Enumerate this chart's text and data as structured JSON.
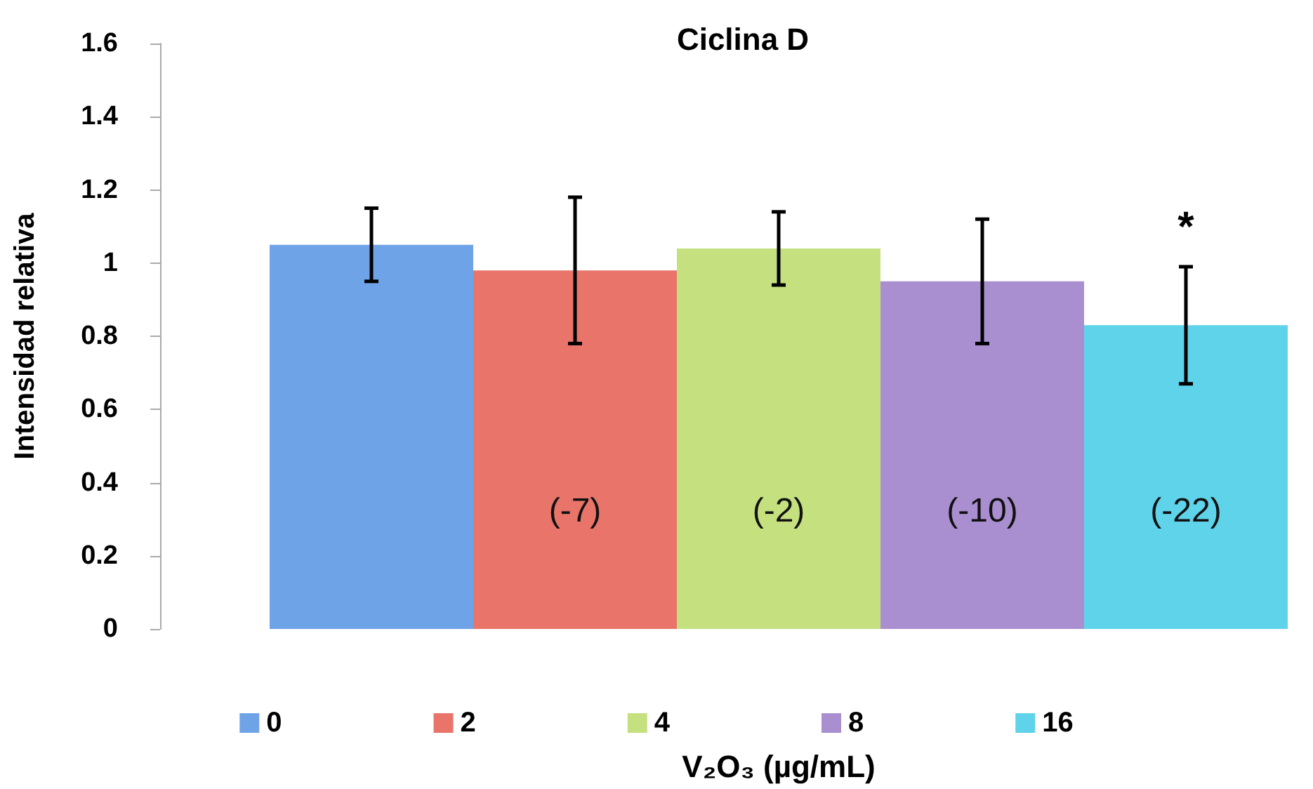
{
  "chart_data": {
    "type": "bar",
    "title": "Ciclina D",
    "xlabel": "V₂O₃ (µg/mL)",
    "ylabel": "Intensidad relativa",
    "categories": [
      null
    ],
    "series": [
      {
        "name": "0",
        "color": "#6fa3e8",
        "values": [
          1.05
        ],
        "errors": [
          0.1
        ]
      },
      {
        "name": "2",
        "color": "#e8746a",
        "values": [
          0.98
        ],
        "errors": [
          0.2
        ]
      },
      {
        "name": "4",
        "color": "#c5e07f",
        "values": [
          1.04
        ],
        "errors": [
          0.1
        ]
      },
      {
        "name": "8",
        "color": "#a98fd0",
        "values": [
          0.95
        ],
        "errors": [
          0.17
        ]
      },
      {
        "name": "16",
        "color": "#5fd3ea",
        "values": [
          0.83
        ],
        "errors": [
          0.16
        ]
      }
    ],
    "annotations": [
      "(-7)",
      "(-2)",
      "(-10)",
      "(-22)",
      "*"
    ],
    "ylim": [
      0,
      1.6
    ],
    "yticks": [
      0,
      0.2,
      0.4,
      0.6,
      0.8,
      1,
      1.2,
      1.4,
      1.6
    ],
    "grid": false,
    "legend": "bottom"
  }
}
